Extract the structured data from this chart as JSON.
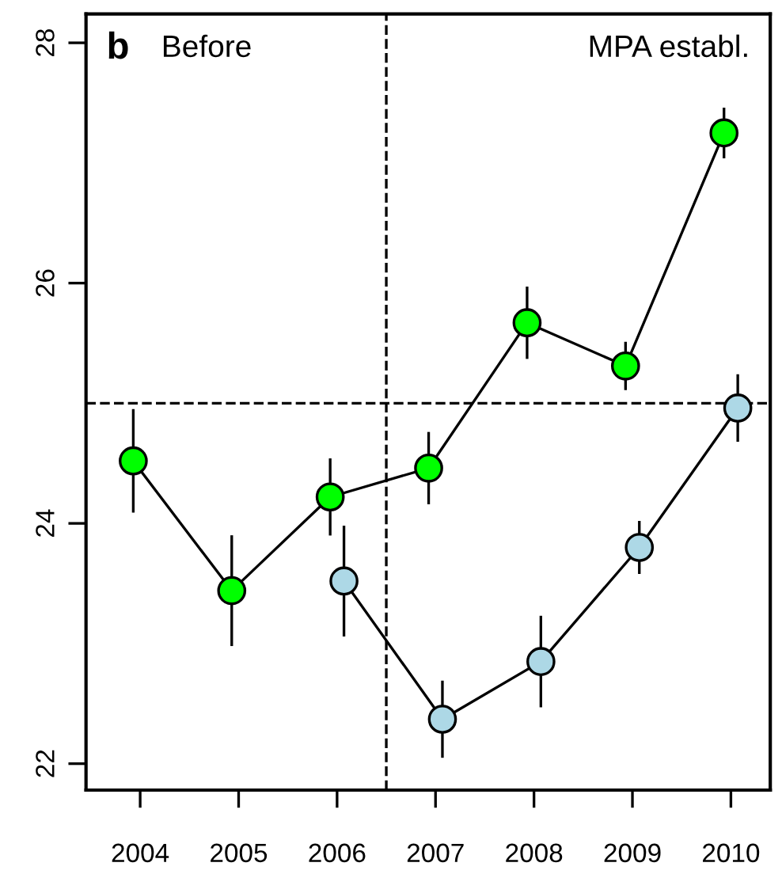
{
  "chart_data": {
    "type": "line",
    "annotations": [
      "b",
      "Before",
      "MPA establ."
    ],
    "xlim": [
      2003.45,
      2010.4
    ],
    "xticks": [
      2004,
      2005,
      2006,
      2007,
      2008,
      2009,
      2010
    ],
    "ylim": [
      21.78,
      28.24
    ],
    "yticks": [
      22,
      24,
      26,
      28
    ],
    "series": [
      {
        "color": "#00ff00",
        "x": [
          2003.93,
          2004.93,
          2005.93,
          2006.93,
          2007.93,
          2008.93,
          2009.93
        ],
        "values": [
          24.52,
          23.44,
          24.22,
          24.46,
          25.67,
          25.31,
          27.25
        ],
        "errors": [
          0.42,
          0.45,
          0.31,
          0.29,
          0.29,
          0.19,
          0.2
        ]
      },
      {
        "color": "#add8e6",
        "x": [
          2006.07,
          2007.07,
          2008.07,
          2009.07,
          2010.07
        ],
        "values": [
          23.52,
          22.37,
          22.85,
          23.8,
          24.96
        ],
        "errors": [
          0.45,
          0.31,
          0.37,
          0.21,
          0.27
        ]
      }
    ],
    "ref_lines": [
      {
        "axis": "x",
        "value": 2006.5,
        "line_style": "dashed"
      },
      {
        "axis": "y",
        "value": 25,
        "line_style": "dashed"
      }
    ],
    "marker": "circle",
    "line_style": "solid",
    "grid": false,
    "legend": false
  }
}
